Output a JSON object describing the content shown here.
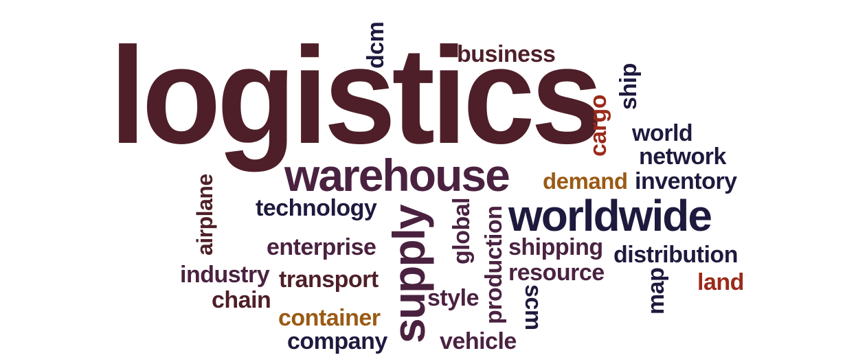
{
  "colors": {
    "maroon": "#4e1f28",
    "navy": "#1e1a3e",
    "plum": "#4a2240",
    "rust": "#9a2a1a",
    "amber": "#9a5a14"
  },
  "words": {
    "logistics": "logistics",
    "dcm": "dcm",
    "business": "business",
    "ship": "ship",
    "cargo": "cargo",
    "world": "world",
    "network": "network",
    "warehouse": "warehouse",
    "demand": "demand",
    "inventory": "inventory",
    "airplane": "airplane",
    "technology": "technology",
    "supply": "supply",
    "global": "global",
    "production": "production",
    "worldwide": "worldwide",
    "enterprise": "enterprise",
    "shipping": "shipping",
    "distribution": "distribution",
    "industry": "industry",
    "transport": "transport",
    "resource": "resource",
    "map": "map",
    "land": "land",
    "chain": "chain",
    "style": "style",
    "scm": "scm",
    "container": "container",
    "company": "company",
    "vehicle": "vehicle"
  }
}
